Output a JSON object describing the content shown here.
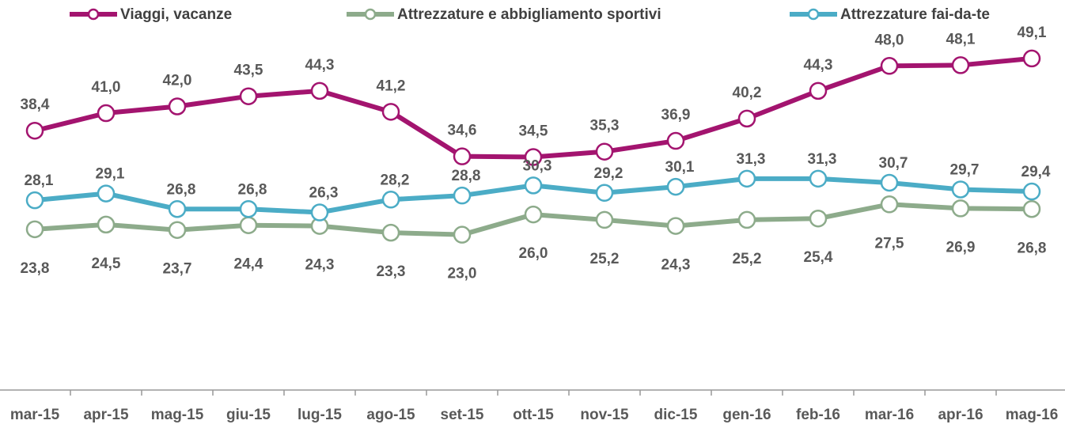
{
  "chart_data": {
    "type": "line",
    "categories": [
      "mar-15",
      "apr-15",
      "mag-15",
      "giu-15",
      "lug-15",
      "ago-15",
      "set-15",
      "ott-15",
      "nov-15",
      "dic-15",
      "gen-16",
      "feb-16",
      "mar-16",
      "apr-16",
      "mag-16"
    ],
    "series": [
      {
        "name": "Viaggi, vacanze",
        "color": "#a3146f",
        "values": [
          38.4,
          41.0,
          42.0,
          43.5,
          44.3,
          41.2,
          34.6,
          34.5,
          35.3,
          36.9,
          40.2,
          44.3,
          48.0,
          48.1,
          49.1
        ],
        "value_labels": [
          "38,4",
          "41,0",
          "42,0",
          "43,5",
          "44,3",
          "41,2",
          "34,6",
          "34,5",
          "35,3",
          "36,9",
          "40,2",
          "44,3",
          "48,0",
          "48,1",
          "49,1"
        ]
      },
      {
        "name": "Attrezzature e abbigliamento sportivi",
        "color": "#8dab8b",
        "values": [
          23.8,
          24.5,
          23.7,
          24.4,
          24.3,
          23.3,
          23.0,
          26.0,
          25.2,
          24.3,
          25.2,
          25.4,
          27.5,
          26.9,
          26.8
        ],
        "value_labels": [
          "23,8",
          "24,5",
          "23,7",
          "24,4",
          "24,3",
          "23,3",
          "23,0",
          "26,0",
          "25,2",
          "24,3",
          "25,2",
          "25,4",
          "27,5",
          "26,9",
          "26,8"
        ]
      },
      {
        "name": "Attrezzature fai-da-te",
        "color": "#4bacc6",
        "values": [
          28.1,
          29.1,
          26.8,
          26.8,
          26.3,
          28.2,
          28.8,
          30.3,
          29.2,
          30.1,
          31.3,
          31.3,
          30.7,
          29.7,
          29.4
        ],
        "value_labels": [
          "28,1",
          "29,1",
          "26,8",
          "26,8",
          "26,3",
          "28,2",
          "28,8",
          "30,3",
          "29,2",
          "30,1",
          "31,3",
          "31,3",
          "30,7",
          "29,7",
          "29,4"
        ]
      }
    ],
    "ylim": [
      0,
      56
    ],
    "legend": "top"
  }
}
